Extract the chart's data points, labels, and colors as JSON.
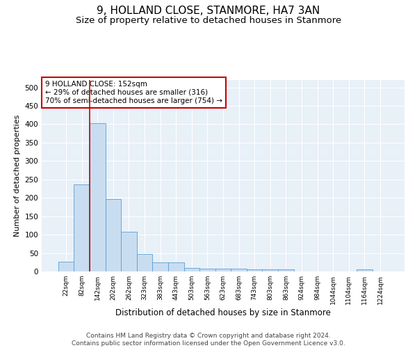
{
  "title": "9, HOLLAND CLOSE, STANMORE, HA7 3AN",
  "subtitle": "Size of property relative to detached houses in Stanmore",
  "xlabel": "Distribution of detached houses by size in Stanmore",
  "ylabel": "Number of detached properties",
  "bin_labels": [
    "22sqm",
    "82sqm",
    "142sqm",
    "202sqm",
    "262sqm",
    "323sqm",
    "383sqm",
    "443sqm",
    "503sqm",
    "563sqm",
    "623sqm",
    "683sqm",
    "743sqm",
    "803sqm",
    "863sqm",
    "924sqm",
    "984sqm",
    "1044sqm",
    "1104sqm",
    "1164sqm",
    "1224sqm"
  ],
  "bar_heights": [
    27,
    237,
    403,
    197,
    107,
    47,
    25,
    25,
    10,
    7,
    7,
    7,
    5,
    5,
    5,
    0,
    0,
    0,
    0,
    5,
    0
  ],
  "bar_color": "#c9ddf0",
  "bar_edge_color": "#5a9fd4",
  "vline_color": "#cc0000",
  "annotation_text": "9 HOLLAND CLOSE: 152sqm\n← 29% of detached houses are smaller (316)\n70% of semi-detached houses are larger (754) →",
  "annotation_box_color": "#ffffff",
  "annotation_box_edge_color": "#cc0000",
  "ylim": [
    0,
    520
  ],
  "yticks": [
    0,
    50,
    100,
    150,
    200,
    250,
    300,
    350,
    400,
    450,
    500
  ],
  "bg_color": "#e8f0f8",
  "footer_text": "Contains HM Land Registry data © Crown copyright and database right 2024.\nContains public sector information licensed under the Open Government Licence v3.0.",
  "title_fontsize": 11,
  "subtitle_fontsize": 9.5,
  "xlabel_fontsize": 8.5,
  "ylabel_fontsize": 8,
  "annotation_fontsize": 7.5,
  "footer_fontsize": 6.5
}
